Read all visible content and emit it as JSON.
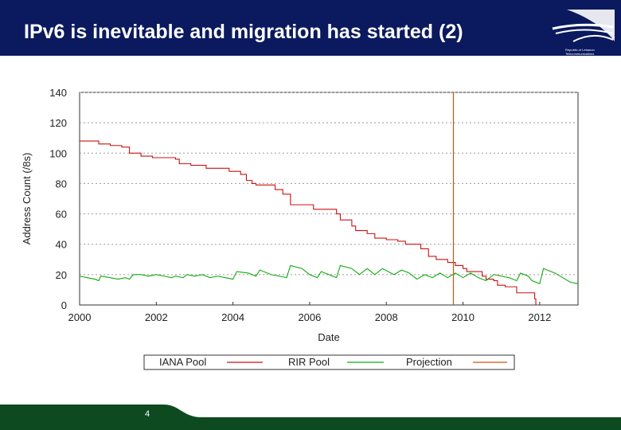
{
  "slide": {
    "title": "IPv6 is inevitable and migration has started (2)",
    "page_number": "4",
    "logo_text": "Republic of Lebanon\nTelecommunications\nRegulatory Authority",
    "colors": {
      "header": "#0b1a5e",
      "footer": "#0d4a1f"
    }
  },
  "chart_data": {
    "type": "line",
    "title": "",
    "xlabel": "Date",
    "ylabel": "Address Count (/8s)",
    "xlim": [
      2000,
      2013
    ],
    "ylim": [
      0,
      140
    ],
    "x_ticks": [
      "2000",
      "2002",
      "2004",
      "2006",
      "2008",
      "2010",
      "2012"
    ],
    "y_ticks": [
      "0",
      "20",
      "40",
      "60",
      "80",
      "100",
      "120",
      "140"
    ],
    "grid": "horizontal dotted",
    "legend_position": "bottom",
    "series": [
      {
        "name": "IANA Pool",
        "color": "#cc1111",
        "style": "step",
        "points": [
          [
            2000.0,
            108
          ],
          [
            2000.4,
            108
          ],
          [
            2000.5,
            106
          ],
          [
            2000.8,
            105
          ],
          [
            2001.1,
            104
          ],
          [
            2001.3,
            100
          ],
          [
            2001.6,
            98
          ],
          [
            2001.9,
            97
          ],
          [
            2002.5,
            96
          ],
          [
            2002.6,
            93
          ],
          [
            2002.9,
            92
          ],
          [
            2003.3,
            90
          ],
          [
            2003.9,
            88
          ],
          [
            2004.2,
            86
          ],
          [
            2004.35,
            82
          ],
          [
            2004.5,
            80
          ],
          [
            2004.6,
            79
          ],
          [
            2005.1,
            76
          ],
          [
            2005.3,
            73
          ],
          [
            2005.5,
            66
          ],
          [
            2006.0,
            66
          ],
          [
            2006.1,
            63
          ],
          [
            2006.7,
            60
          ],
          [
            2006.8,
            56
          ],
          [
            2007.1,
            52
          ],
          [
            2007.2,
            49
          ],
          [
            2007.5,
            47
          ],
          [
            2007.7,
            44
          ],
          [
            2008.0,
            43
          ],
          [
            2008.3,
            42
          ],
          [
            2008.5,
            40
          ],
          [
            2008.9,
            37
          ],
          [
            2009.1,
            32
          ],
          [
            2009.3,
            30
          ],
          [
            2009.6,
            28
          ],
          [
            2009.8,
            26
          ],
          [
            2010.0,
            24
          ],
          [
            2010.1,
            22
          ],
          [
            2010.5,
            19
          ],
          [
            2010.6,
            17
          ],
          [
            2010.8,
            16
          ],
          [
            2010.9,
            13
          ],
          [
            2011.1,
            12
          ],
          [
            2011.4,
            8
          ],
          [
            2011.8,
            8
          ],
          [
            2011.87,
            4
          ],
          [
            2011.9,
            0
          ]
        ]
      },
      {
        "name": "RIR Pool",
        "color": "#11aa11",
        "style": "line",
        "points": [
          [
            2000.0,
            19
          ],
          [
            2000.2,
            18
          ],
          [
            2000.4,
            17
          ],
          [
            2000.5,
            16
          ],
          [
            2000.55,
            19
          ],
          [
            2000.8,
            18
          ],
          [
            2001.0,
            17
          ],
          [
            2001.2,
            18
          ],
          [
            2001.3,
            17
          ],
          [
            2001.4,
            20
          ],
          [
            2001.6,
            20
          ],
          [
            2001.8,
            19
          ],
          [
            2002.0,
            20
          ],
          [
            2002.2,
            19
          ],
          [
            2002.4,
            18
          ],
          [
            2002.5,
            19
          ],
          [
            2002.7,
            18
          ],
          [
            2002.8,
            20
          ],
          [
            2003.0,
            19
          ],
          [
            2003.2,
            20
          ],
          [
            2003.4,
            18
          ],
          [
            2003.6,
            19
          ],
          [
            2003.8,
            18
          ],
          [
            2004.0,
            17
          ],
          [
            2004.1,
            22
          ],
          [
            2004.4,
            21
          ],
          [
            2004.6,
            19
          ],
          [
            2004.7,
            23
          ],
          [
            2005.0,
            20
          ],
          [
            2005.2,
            19
          ],
          [
            2005.4,
            18
          ],
          [
            2005.5,
            26
          ],
          [
            2005.8,
            24
          ],
          [
            2006.0,
            20
          ],
          [
            2006.2,
            18
          ],
          [
            2006.3,
            22
          ],
          [
            2006.5,
            20
          ],
          [
            2006.7,
            18
          ],
          [
            2006.8,
            26
          ],
          [
            2007.1,
            24
          ],
          [
            2007.3,
            20
          ],
          [
            2007.5,
            24
          ],
          [
            2007.7,
            20
          ],
          [
            2007.9,
            24
          ],
          [
            2008.2,
            20
          ],
          [
            2008.4,
            23
          ],
          [
            2008.6,
            21
          ],
          [
            2008.8,
            17
          ],
          [
            2009.0,
            20
          ],
          [
            2009.2,
            18
          ],
          [
            2009.4,
            21
          ],
          [
            2009.6,
            18
          ],
          [
            2009.8,
            21
          ],
          [
            2010.0,
            18
          ],
          [
            2010.2,
            21
          ],
          [
            2010.4,
            18
          ],
          [
            2010.6,
            16
          ],
          [
            2010.8,
            20
          ],
          [
            2011.0,
            19
          ],
          [
            2011.2,
            18
          ],
          [
            2011.4,
            16
          ],
          [
            2011.5,
            21
          ],
          [
            2011.7,
            19
          ],
          [
            2011.8,
            16
          ],
          [
            2012.0,
            14
          ],
          [
            2012.1,
            24
          ],
          [
            2012.4,
            21
          ],
          [
            2012.8,
            15
          ],
          [
            2013.0,
            14
          ]
        ]
      },
      {
        "name": "Projection",
        "color": "#cc5511",
        "style": "vertical",
        "x": 2009.75
      }
    ]
  }
}
